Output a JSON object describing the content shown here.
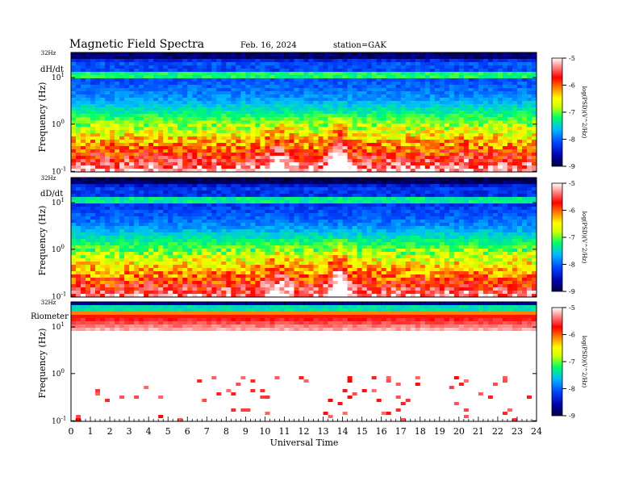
{
  "header": {
    "title": "Magnetic  Field  Spectra",
    "date": "Feb. 16, 2024",
    "station": "station=GAK"
  },
  "chart_data": [
    {
      "type": "heatmap",
      "panel_label": "dH/dt",
      "ylabel": "Frequency  (Hz)",
      "top_label": "32Hz",
      "y_ticks": [
        {
          "base": "10",
          "exp": "1"
        },
        {
          "base": "10",
          "exp": "0"
        },
        {
          "base": "10",
          "exp": "-1"
        }
      ],
      "colorbar": {
        "label": "log(PSD)(V^2/Hz)",
        "ticks": [
          "-5",
          "-6",
          "-7",
          "-8",
          "-9"
        ]
      }
    },
    {
      "type": "heatmap",
      "panel_label": "dD/dt",
      "ylabel": "Frequency  (Hz)",
      "top_label": "32Hz",
      "y_ticks": [
        {
          "base": "10",
          "exp": "1"
        },
        {
          "base": "10",
          "exp": "0"
        },
        {
          "base": "10",
          "exp": "-1"
        }
      ],
      "colorbar": {
        "label": "log(PSD)(V^2/Hz)",
        "ticks": [
          "-5",
          "-6",
          "-7",
          "-8",
          "-9"
        ]
      }
    },
    {
      "type": "heatmap",
      "panel_label": "Riometer",
      "ylabel": "Frequency  (Hz)",
      "top_label": "32Hz",
      "y_ticks": [
        {
          "base": "10",
          "exp": "1"
        },
        {
          "base": "10",
          "exp": "0"
        },
        {
          "base": "10",
          "exp": "-1"
        }
      ],
      "colorbar": {
        "label": "log(PSD)(V^2/Hz)",
        "ticks": [
          "-5",
          "-6",
          "-7",
          "-8",
          "-9"
        ]
      }
    }
  ],
  "x_axis": {
    "label": "Universal Time",
    "ticks": [
      "0",
      "1",
      "2",
      "3",
      "4",
      "5",
      "6",
      "7",
      "8",
      "9",
      "10",
      "11",
      "12",
      "13",
      "14",
      "15",
      "16",
      "17",
      "18",
      "19",
      "20",
      "21",
      "22",
      "23",
      "24"
    ],
    "range": [
      0,
      24
    ]
  },
  "colormap": [
    "#000044",
    "#0000aa",
    "#0044ff",
    "#00bbff",
    "#00ff66",
    "#ccff00",
    "#ffff00",
    "#ff8800",
    "#ff0000",
    "#ff8888",
    "#ffffff"
  ]
}
